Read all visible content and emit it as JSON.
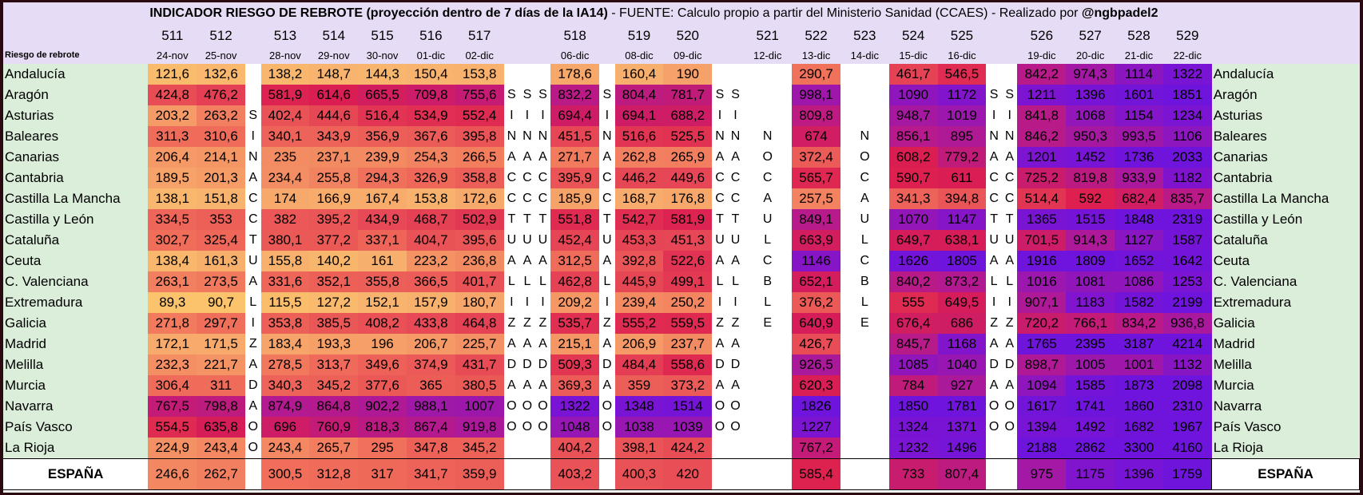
{
  "title_main": "INDICADOR RIESGO DE REBROTE (proyección dentro de 7 días de la IA14)",
  "title_rest": " - FUENTE: Calculo propio a partir del Ministerio Sanidad (CCAES) - Realizado por ",
  "title_handle": "@ngbpadel2",
  "corner_label": "Riesgo de rebrote",
  "chart_data": {
    "type": "table",
    "title": "INDICADOR RIESGO DE REBROTE (proyección dentro de 7 días de la IA14)",
    "columns": [
      {
        "kind": "data",
        "num": "511",
        "date": "24-nov"
      },
      {
        "kind": "data",
        "num": "512",
        "date": "25-nov"
      },
      {
        "kind": "letter",
        "num": "",
        "date": "",
        "letters": "  SINACCTUALIZADAOO  "
      },
      {
        "kind": "data",
        "num": "513",
        "date": "28-nov"
      },
      {
        "kind": "data",
        "num": "514",
        "date": "29-nov"
      },
      {
        "kind": "data",
        "num": "515",
        "date": "30-nov"
      },
      {
        "kind": "data",
        "num": "516",
        "date": "01-dic"
      },
      {
        "kind": "data",
        "num": "517",
        "date": "02-dic"
      },
      {
        "kind": "letter",
        "num": "",
        "date": "",
        "letters": " SINACCTUALIZADAOO  "
      },
      {
        "kind": "letter",
        "num": "",
        "date": "",
        "letters": " SINACCTUALIZADAOO  "
      },
      {
        "kind": "letter",
        "num": "",
        "date": "",
        "letters": " SINACCTUALIZADAOO  "
      },
      {
        "kind": "data",
        "num": "518",
        "date": "06-dic"
      },
      {
        "kind": "letter",
        "num": "",
        "date": "",
        "letters": " SINACCTUALIZADAOO  "
      },
      {
        "kind": "data",
        "num": "519",
        "date": "08-dic"
      },
      {
        "kind": "data",
        "num": "520",
        "date": "09-dic"
      },
      {
        "kind": "letter",
        "num": "",
        "date": "",
        "letters": " SINACCTUALIZADAOO  "
      },
      {
        "kind": "letter",
        "num": "",
        "date": "",
        "letters": " SINACCTUALIZADAOO  "
      },
      {
        "kind": "letter",
        "num": "521",
        "date": "12-dic",
        "letters": "   NOCAULCBLE     "
      },
      {
        "kind": "data",
        "num": "522",
        "date": "13-dic"
      },
      {
        "kind": "letter",
        "num": "523",
        "date": "14-dic",
        "letters": "   NOCAULCBLE     "
      },
      {
        "kind": "data",
        "num": "524",
        "date": "15-dic"
      },
      {
        "kind": "data",
        "num": "525",
        "date": "16-dic"
      },
      {
        "kind": "letter",
        "num": "",
        "date": "",
        "letters": " SINACCTUALIZADAOO  "
      },
      {
        "kind": "letter",
        "num": "",
        "date": "",
        "letters": " SINACCTUALIZADAOO  "
      },
      {
        "kind": "data",
        "num": "526",
        "date": "19-dic"
      },
      {
        "kind": "data",
        "num": "527",
        "date": "20-dic"
      },
      {
        "kind": "data",
        "num": "528",
        "date": "21-dic"
      },
      {
        "kind": "data",
        "num": "529",
        "date": "22-dic"
      }
    ],
    "regions": [
      {
        "name": "Andalucía",
        "values": [
          "121,6",
          "132,6",
          "138,2",
          "148,7",
          "144,3",
          "150,4",
          "153,8",
          "178,6",
          "160,4",
          "190",
          "290,7",
          "461,7",
          "546,5",
          "842,2",
          "974,3",
          "1114",
          "1322"
        ]
      },
      {
        "name": "Aragón",
        "values": [
          "424,8",
          "476,2",
          "581,9",
          "614,6",
          "665,5",
          "709,8",
          "755,6",
          "832,2",
          "804,4",
          "781,7",
          "998,1",
          "1090",
          "1172",
          "1211",
          "1396",
          "1601",
          "1851"
        ]
      },
      {
        "name": "Asturias",
        "values": [
          "203,2",
          "263,2",
          "402,4",
          "444,6",
          "516,4",
          "534,9",
          "552,4",
          "694,4",
          "694,1",
          "688,2",
          "809,8",
          "948,7",
          "1019",
          "841,8",
          "1068",
          "1154",
          "1234"
        ]
      },
      {
        "name": "Baleares",
        "values": [
          "311,3",
          "310,6",
          "340,1",
          "343,9",
          "356,9",
          "367,6",
          "395,8",
          "451,5",
          "516,6",
          "525,5",
          "674",
          "856,1",
          "895",
          "846,2",
          "950,3",
          "993,5",
          "1106"
        ]
      },
      {
        "name": "Canarias",
        "values": [
          "206,4",
          "214,1",
          "235",
          "237,1",
          "239,9",
          "254,3",
          "266,5",
          "271,7",
          "262,8",
          "265,9",
          "372,4",
          "608,2",
          "779,2",
          "1201",
          "1452",
          "1736",
          "2033"
        ]
      },
      {
        "name": "Cantabria",
        "values": [
          "189,5",
          "201,3",
          "234,4",
          "255,8",
          "294,3",
          "326,9",
          "358,8",
          "395,9",
          "446,2",
          "449,6",
          "565,7",
          "590,7",
          "611",
          "725,2",
          "819,8",
          "933,9",
          "1182"
        ]
      },
      {
        "name": "Castilla La Mancha",
        "values": [
          "138,1",
          "151,8",
          "174",
          "166,9",
          "167,4",
          "153,8",
          "172,6",
          "185,9",
          "168,7",
          "176,8",
          "257,5",
          "341,3",
          "394,8",
          "514,4",
          "592",
          "682,4",
          "835,7"
        ]
      },
      {
        "name": "Castilla y León",
        "values": [
          "334,5",
          "353",
          "382",
          "395,2",
          "434,9",
          "468,7",
          "502,9",
          "551,8",
          "542,7",
          "581,9",
          "849,1",
          "1070",
          "1147",
          "1365",
          "1515",
          "1848",
          "2319"
        ]
      },
      {
        "name": "Cataluña",
        "values": [
          "302,7",
          "325,4",
          "380,1",
          "377,2",
          "337,1",
          "404,7",
          "395,6",
          "452,4",
          "453,3",
          "451,3",
          "663,9",
          "649,7",
          "638,1",
          "701,5",
          "914,3",
          "1127",
          "1587"
        ]
      },
      {
        "name": "Ceuta",
        "values": [
          "138,4",
          "161,3",
          "155,8",
          "140,2",
          "161",
          "223,2",
          "236,8",
          "312,5",
          "392,8",
          "522,6",
          "1146",
          "1626",
          "1805",
          "1916",
          "1809",
          "1652",
          "1642"
        ]
      },
      {
        "name": "C. Valenciana",
        "values": [
          "263,1",
          "273,5",
          "331,6",
          "352,1",
          "355,8",
          "366,5",
          "401,7",
          "462,8",
          "445,9",
          "499,1",
          "652,1",
          "840,2",
          "873,2",
          "1016",
          "1081",
          "1086",
          "1253"
        ]
      },
      {
        "name": "Extremadura",
        "values": [
          "89,3",
          "90,7",
          "115,5",
          "127,2",
          "152,1",
          "157,9",
          "180,7",
          "209,2",
          "239,4",
          "250,2",
          "376,2",
          "555",
          "649,5",
          "907,1",
          "1183",
          "1582",
          "2199"
        ]
      },
      {
        "name": "Galicia",
        "values": [
          "271,8",
          "297,7",
          "353,8",
          "385,5",
          "408,2",
          "433,8",
          "464,8",
          "535,7",
          "555,2",
          "559,5",
          "640,9",
          "676,4",
          "686",
          "720,2",
          "766,1",
          "834,2",
          "936,8"
        ]
      },
      {
        "name": "Madrid",
        "values": [
          "172,1",
          "171,5",
          "183,4",
          "193,3",
          "196",
          "206,7",
          "225,7",
          "215,1",
          "206,9",
          "237,7",
          "426,7",
          "845,7",
          "1168",
          "1765",
          "2395",
          "3187",
          "4214"
        ]
      },
      {
        "name": "Melilla",
        "values": [
          "232,3",
          "221,7",
          "278,5",
          "313,7",
          "349,6",
          "374,9",
          "431,7",
          "509,3",
          "484,4",
          "558,6",
          "926,5",
          "1085",
          "1040",
          "898,7",
          "1005",
          "1001",
          "1132"
        ]
      },
      {
        "name": "Murcia",
        "values": [
          "306,4",
          "311",
          "340,3",
          "345,2",
          "377,6",
          "365",
          "380,5",
          "369,3",
          "359",
          "373,2",
          "620,3",
          "784",
          "927",
          "1094",
          "1585",
          "1873",
          "2098"
        ]
      },
      {
        "name": "Navarra",
        "values": [
          "767,5",
          "798,8",
          "874,9",
          "864,8",
          "902,2",
          "988,1",
          "1007",
          "1322",
          "1348",
          "1514",
          "1826",
          "1850",
          "1781",
          "1617",
          "1741",
          "1860",
          "2310"
        ]
      },
      {
        "name": "País Vasco",
        "values": [
          "554,5",
          "635,8",
          "696",
          "760,9",
          "818,3",
          "867,4",
          "919,8",
          "1048",
          "1038",
          "1039",
          "1227",
          "1324",
          "1371",
          "1394",
          "1492",
          "1682",
          "1967"
        ]
      },
      {
        "name": "La Rioja",
        "values": [
          "224,9",
          "243,4",
          "243,4",
          "265,7",
          "295",
          "347,8",
          "345,2",
          "404,2",
          "398,1",
          "424,2",
          "767,2",
          "1232",
          "1496",
          "2188",
          "2862",
          "3300",
          "4160"
        ]
      }
    ],
    "total": {
      "name": "ESPAÑA",
      "values": [
        "246,6",
        "262,7",
        "300,5",
        "312,8",
        "317",
        "341,7",
        "359,9",
        "403,2",
        "400,3",
        "420",
        "585,4",
        "733",
        "807,4",
        "975",
        "1175",
        "1396",
        "1759"
      ]
    }
  }
}
